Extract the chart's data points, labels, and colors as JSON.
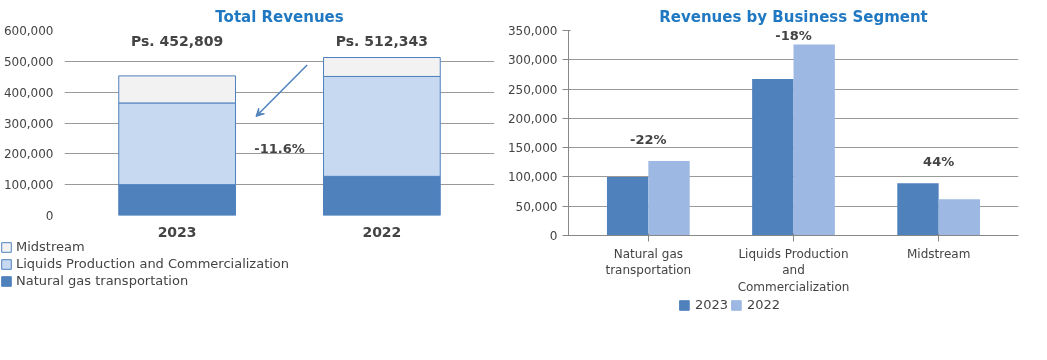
{
  "chart_data": [
    {
      "type": "bar",
      "title": "Total Revenues",
      "categories": [
        "2023",
        "2022"
      ],
      "stacked": true,
      "series": [
        {
          "name": "Natural gas transportation",
          "color": "#4f81bd",
          "values": [
            100000,
            127000
          ]
        },
        {
          "name": "Liquids Production and Commercialization",
          "color": "#c6d9f1",
          "values": [
            265000,
            324000
          ]
        },
        {
          "name": "Midstream",
          "color": "#f2f2f2",
          "values": [
            87809,
            61343
          ]
        }
      ],
      "totals": [
        "Ps. 452,809",
        "Ps. 512,343"
      ],
      "annotations": [
        "-11.6%"
      ],
      "ylim": [
        0,
        600000
      ],
      "yticks": [
        {
          "value": 0,
          "label": "0"
        },
        {
          "value": 100000,
          "label": "100,000"
        },
        {
          "value": 200000,
          "label": "200,000"
        },
        {
          "value": 300000,
          "label": "300,000"
        },
        {
          "value": 400000,
          "label": "400,000"
        },
        {
          "value": 500000,
          "label": "500,000"
        },
        {
          "value": 600000,
          "label": "600,000"
        }
      ],
      "grid": "y",
      "legend": "bottom"
    },
    {
      "type": "bar",
      "title": "Revenues by Business Segment",
      "categories": [
        "Natural gas transportation",
        "Liquids Production and Commercialization",
        "Midstream"
      ],
      "series": [
        {
          "name": "2023",
          "color": "#4f81bd",
          "values": [
            100000,
            267000,
            89000
          ]
        },
        {
          "name": "2022",
          "color": "#9db8e3",
          "values": [
            127000,
            326000,
            62000
          ]
        }
      ],
      "annotations": [
        "-22%",
        "-18%",
        "44%"
      ],
      "ylim": [
        0,
        350000
      ],
      "yticks": [
        {
          "value": 0,
          "label": "0"
        },
        {
          "value": 50000,
          "label": "50,000"
        },
        {
          "value": 100000,
          "label": "100,000"
        },
        {
          "value": 150000,
          "label": "150,000"
        },
        {
          "value": 200000,
          "label": "200,000"
        },
        {
          "value": 250000,
          "label": "250,000"
        },
        {
          "value": 300000,
          "label": "300,000"
        },
        {
          "value": 350000,
          "label": "350,000"
        }
      ],
      "grid": "y",
      "legend": "bottom"
    }
  ]
}
